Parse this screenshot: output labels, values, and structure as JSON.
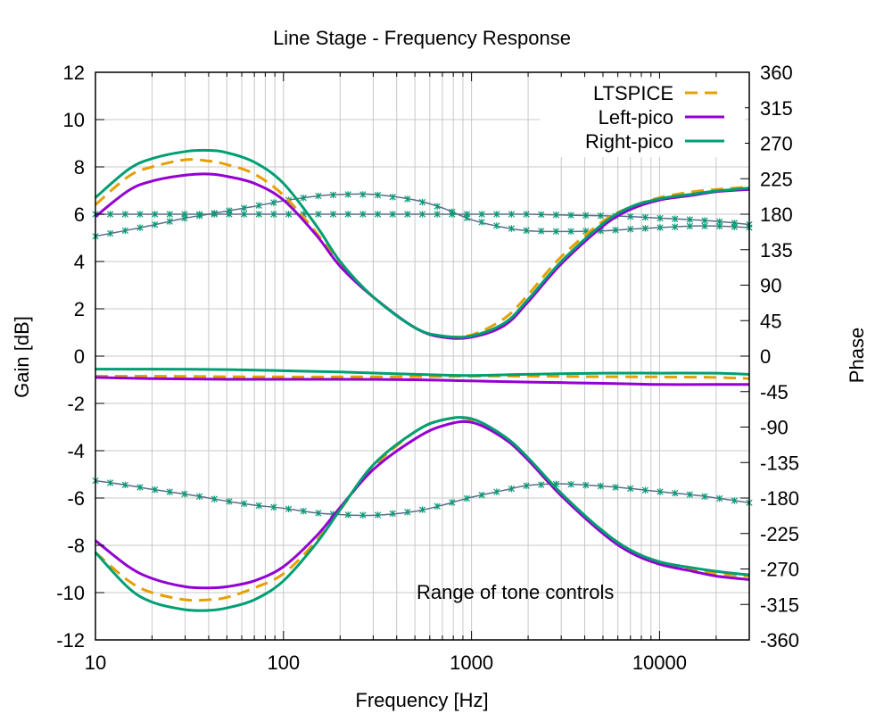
{
  "chart_data": {
    "type": "line",
    "title": "Line Stage - Frequency Response",
    "xlabel": "Frequency [Hz]",
    "ylabel": "Gain [dB]",
    "y2label": "Phase",
    "xscale": "log",
    "xlim": [
      10,
      30000
    ],
    "ylim": [
      -12,
      12
    ],
    "y2lim": [
      -360,
      360
    ],
    "xticks": [
      10,
      100,
      1000,
      10000
    ],
    "xtick_labels": [
      "10",
      "100",
      "1000",
      "10000"
    ],
    "yticks": [
      -12,
      -10,
      -8,
      -6,
      -4,
      -2,
      0,
      2,
      4,
      6,
      8,
      10,
      12
    ],
    "ytick_labels": [
      "-12",
      "-10",
      "-8",
      "-6",
      "-4",
      "-2",
      "0",
      "2",
      "4",
      "6",
      "8",
      "10",
      "12"
    ],
    "y2ticks": [
      -360,
      -315,
      -270,
      -225,
      -180,
      -135,
      -90,
      -45,
      0,
      45,
      90,
      135,
      180,
      225,
      270,
      315,
      360
    ],
    "y2tick_labels": [
      "-360",
      "-315",
      "-270",
      "-225",
      "-180",
      "-135",
      "-90",
      "-45",
      "0",
      "45",
      "90",
      "135",
      "180",
      "225",
      "270",
      "315",
      "360"
    ],
    "grid": true,
    "legend_position": "top-right",
    "annotation": "Range of tone controls",
    "colors": {
      "ltspice": "#e69f00",
      "left": "#9400d3",
      "right": "#009e73",
      "phase_marker": "#009e73",
      "phase_line": "#5a6e8c"
    },
    "series": [
      {
        "name": "LTSPICE",
        "style": "dashed",
        "axis": "y",
        "x": [
          10,
          15,
          20,
          30,
          40,
          50,
          70,
          100,
          150,
          200,
          300,
          500,
          700,
          1000,
          1500,
          2000,
          3000,
          5000,
          7000,
          10000,
          15000,
          20000,
          30000
        ],
        "y": [
          6.4,
          7.6,
          8.0,
          8.3,
          8.25,
          8.1,
          7.7,
          6.8,
          5.2,
          3.9,
          2.5,
          1.2,
          0.85,
          0.9,
          1.6,
          2.6,
          4.2,
          5.7,
          6.3,
          6.7,
          6.95,
          7.05,
          7.15
        ]
      },
      {
        "name": "Left-pico",
        "style": "solid",
        "axis": "y",
        "x": [
          10,
          15,
          20,
          30,
          40,
          50,
          70,
          100,
          150,
          200,
          300,
          500,
          700,
          1000,
          1500,
          2000,
          3000,
          5000,
          7000,
          10000,
          15000,
          20000,
          30000
        ],
        "y": [
          5.9,
          7.0,
          7.4,
          7.65,
          7.7,
          7.6,
          7.3,
          6.6,
          5.1,
          3.8,
          2.5,
          1.2,
          0.8,
          0.8,
          1.3,
          2.3,
          3.9,
          5.5,
          6.2,
          6.6,
          6.8,
          6.95,
          7.05
        ]
      },
      {
        "name": "Right-pico",
        "style": "solid",
        "axis": "y",
        "x": [
          10,
          15,
          20,
          30,
          40,
          50,
          70,
          100,
          150,
          200,
          300,
          500,
          700,
          1000,
          1500,
          2000,
          3000,
          5000,
          7000,
          10000,
          15000,
          20000,
          30000
        ],
        "y": [
          6.7,
          7.9,
          8.35,
          8.65,
          8.7,
          8.6,
          8.2,
          7.3,
          5.5,
          4.0,
          2.5,
          1.2,
          0.85,
          0.85,
          1.4,
          2.4,
          4.0,
          5.6,
          6.3,
          6.65,
          6.85,
          6.98,
          7.1
        ]
      },
      {
        "name": "",
        "style": "dashed",
        "axis": "y",
        "color_key": "ltspice",
        "x": [
          10,
          20,
          50,
          100,
          200,
          500,
          1000,
          2000,
          5000,
          10000,
          20000,
          30000
        ],
        "y": [
          -0.85,
          -0.85,
          -0.87,
          -0.88,
          -0.88,
          -0.87,
          -0.85,
          -0.85,
          -0.87,
          -0.88,
          -0.9,
          -0.95
        ]
      },
      {
        "name": "",
        "style": "solid",
        "axis": "y",
        "color_key": "left",
        "x": [
          10,
          20,
          50,
          100,
          200,
          500,
          1000,
          2000,
          5000,
          10000,
          20000,
          30000
        ],
        "y": [
          -0.9,
          -0.95,
          -0.98,
          -0.98,
          -0.98,
          -1.0,
          -1.05,
          -1.1,
          -1.15,
          -1.2,
          -1.2,
          -1.2
        ]
      },
      {
        "name": "",
        "style": "solid",
        "axis": "y",
        "color_key": "right",
        "x": [
          10,
          20,
          50,
          100,
          200,
          500,
          1000,
          2000,
          5000,
          10000,
          20000,
          30000
        ],
        "y": [
          -0.55,
          -0.55,
          -0.57,
          -0.62,
          -0.67,
          -0.77,
          -0.82,
          -0.77,
          -0.72,
          -0.72,
          -0.72,
          -0.77
        ]
      },
      {
        "name": "",
        "style": "dashed",
        "axis": "y",
        "color_key": "ltspice",
        "x": [
          10,
          15,
          20,
          30,
          40,
          50,
          70,
          100,
          150,
          200,
          300,
          500,
          700,
          1000,
          1500,
          2000,
          3000,
          5000,
          7000,
          10000,
          15000,
          20000,
          30000
        ],
        "y": [
          -8.3,
          -9.5,
          -10.0,
          -10.3,
          -10.3,
          -10.2,
          -9.8,
          -9.2,
          -7.8,
          -6.5,
          -4.7,
          -3.2,
          -2.7,
          -2.7,
          -3.5,
          -4.4,
          -5.9,
          -7.4,
          -8.2,
          -8.7,
          -9.0,
          -9.2,
          -9.3
        ]
      },
      {
        "name": "",
        "style": "solid",
        "axis": "y",
        "color_key": "left",
        "x": [
          10,
          15,
          20,
          30,
          40,
          50,
          70,
          100,
          150,
          200,
          300,
          500,
          700,
          1000,
          1500,
          2000,
          3000,
          5000,
          7000,
          10000,
          15000,
          20000,
          30000
        ],
        "y": [
          -7.8,
          -8.9,
          -9.4,
          -9.75,
          -9.8,
          -9.75,
          -9.5,
          -8.9,
          -7.6,
          -6.4,
          -4.8,
          -3.5,
          -2.95,
          -2.8,
          -3.5,
          -4.4,
          -5.9,
          -7.5,
          -8.3,
          -8.8,
          -9.1,
          -9.3,
          -9.45
        ]
      },
      {
        "name": "",
        "style": "solid",
        "axis": "y",
        "color_key": "right",
        "x": [
          10,
          15,
          20,
          30,
          40,
          50,
          70,
          100,
          150,
          200,
          300,
          500,
          700,
          1000,
          1500,
          2000,
          3000,
          5000,
          7000,
          10000,
          15000,
          20000,
          30000
        ],
        "y": [
          -8.3,
          -9.8,
          -10.4,
          -10.72,
          -10.75,
          -10.65,
          -10.3,
          -9.5,
          -7.9,
          -6.5,
          -4.6,
          -3.2,
          -2.7,
          -2.65,
          -3.4,
          -4.3,
          -5.8,
          -7.4,
          -8.2,
          -8.7,
          -8.95,
          -9.1,
          -9.25
        ]
      },
      {
        "name": "",
        "style": "markers",
        "axis": "y2",
        "x": [
          10,
          15,
          20,
          30,
          40,
          50,
          70,
          100,
          150,
          200,
          300,
          500,
          700,
          1000,
          1500,
          2000,
          3000,
          5000,
          7000,
          10000,
          15000,
          20000,
          30000
        ],
        "y": [
          180,
          180,
          180,
          180,
          180,
          180,
          180,
          180,
          180,
          180,
          180,
          180,
          180,
          180,
          180,
          180,
          179,
          178,
          177,
          175,
          173,
          171,
          167
        ]
      },
      {
        "name": "",
        "style": "markers",
        "axis": "y2",
        "x": [
          10,
          15,
          20,
          30,
          40,
          50,
          70,
          100,
          150,
          200,
          300,
          500,
          700,
          1000,
          1500,
          2000,
          3000,
          5000,
          7000,
          10000,
          15000,
          20000,
          30000
        ],
        "y": [
          152,
          160,
          166,
          175,
          180,
          184,
          190,
          197,
          203,
          205,
          205,
          198,
          188,
          173,
          163,
          159,
          158,
          159,
          161,
          163,
          165,
          165,
          163
        ]
      },
      {
        "name": "",
        "style": "markers",
        "axis": "y2",
        "x": [
          10,
          15,
          20,
          30,
          40,
          50,
          70,
          100,
          150,
          200,
          300,
          500,
          700,
          1000,
          1500,
          2000,
          3000,
          5000,
          7000,
          10000,
          15000,
          20000,
          30000
        ],
        "y": [
          -158,
          -164,
          -169,
          -175,
          -180,
          -184,
          -189,
          -193,
          -199,
          -201,
          -202,
          -197,
          -189,
          -179,
          -170,
          -164,
          -162,
          -165,
          -168,
          -172,
          -176,
          -180,
          -186
        ]
      }
    ]
  }
}
